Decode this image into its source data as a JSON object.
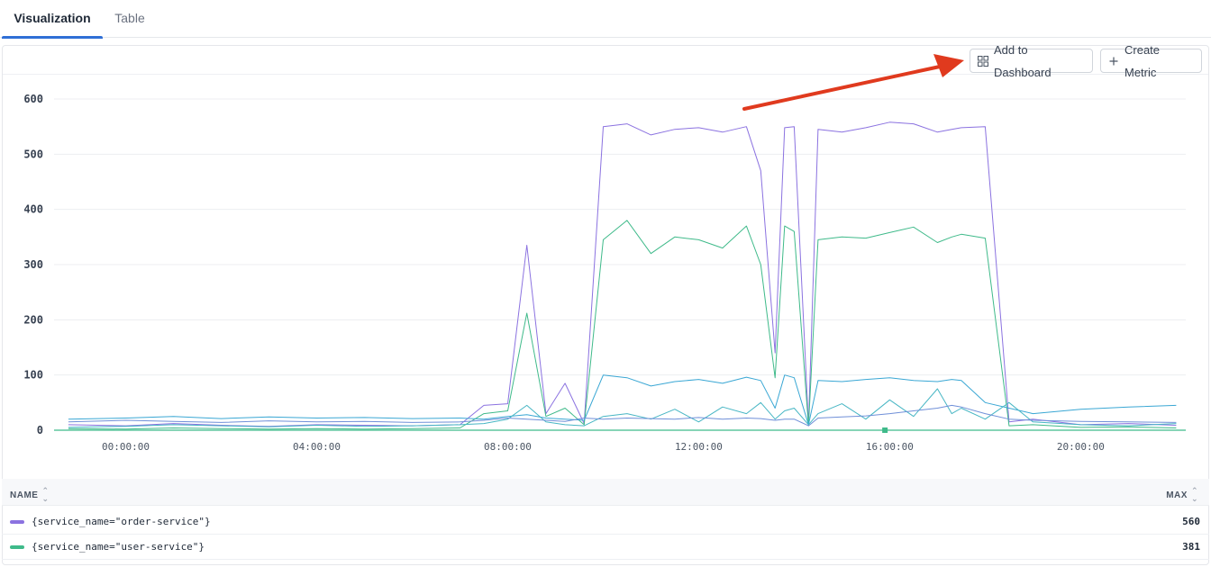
{
  "tabs": [
    {
      "label": "Visualization",
      "active": true
    },
    {
      "label": "Table",
      "active": false
    }
  ],
  "toolbar": {
    "add_to_dashboard_label": "Add to Dashboard",
    "create_metric_label": "Create Metric"
  },
  "chart_data": {
    "type": "line",
    "title": "",
    "xlabel": "",
    "ylabel": "",
    "ylim": [
      0,
      620
    ],
    "y_ticks": [
      0,
      100,
      200,
      300,
      400,
      500,
      600
    ],
    "x_tick_labels": [
      "00:00:00",
      "04:00:00",
      "08:00:00",
      "12:00:00",
      "16:00:00",
      "20:00:00"
    ],
    "x_range_hours": [
      -1.5,
      22.2
    ],
    "grid": true,
    "series": [
      {
        "name": "{service_name=\"order-service\"}",
        "color": "#8b72e0",
        "x_hours": [
          -1.2,
          0,
          1,
          2,
          3,
          4,
          5,
          6,
          7,
          7.5,
          8,
          8.4,
          8.8,
          9.2,
          9.6,
          10,
          10.5,
          11,
          11.5,
          12,
          12.5,
          13,
          13.3,
          13.6,
          13.8,
          14,
          14.3,
          14.5,
          15,
          15.5,
          16,
          16.5,
          17,
          17.3,
          17.5,
          18,
          18.5,
          19,
          20,
          21,
          22
        ],
        "values": [
          10,
          8,
          12,
          9,
          7,
          10,
          9,
          8,
          10,
          45,
          48,
          335,
          30,
          85,
          12,
          550,
          555,
          535,
          545,
          548,
          540,
          550,
          470,
          140,
          548,
          550,
          10,
          545,
          540,
          548,
          558,
          555,
          540,
          545,
          548,
          550,
          15,
          20,
          10,
          12,
          9
        ]
      },
      {
        "name": "{service_name=\"user-service\"}",
        "color": "#3fba8a",
        "x_hours": [
          -1.2,
          0,
          1,
          2,
          3,
          4,
          5,
          6,
          7,
          7.5,
          8,
          8.4,
          8.8,
          9.2,
          9.6,
          10,
          10.5,
          11,
          11.5,
          12,
          12.5,
          13,
          13.3,
          13.6,
          13.8,
          14,
          14.3,
          14.5,
          15,
          15.5,
          16,
          16.5,
          17,
          17.3,
          17.5,
          18,
          18.5,
          19,
          20,
          21,
          22
        ],
        "values": [
          3,
          2,
          4,
          3,
          2,
          3,
          2,
          3,
          4,
          30,
          35,
          212,
          25,
          40,
          10,
          345,
          380,
          320,
          350,
          345,
          330,
          370,
          300,
          95,
          370,
          360,
          8,
          345,
          350,
          348,
          358,
          368,
          340,
          350,
          355,
          348,
          8,
          10,
          5,
          6,
          4
        ]
      },
      {
        "name": "",
        "color": "#3aa7d4",
        "x_hours": [
          -1.2,
          0,
          1,
          2,
          3,
          4,
          5,
          6,
          7,
          7.5,
          8,
          8.4,
          8.8,
          9.2,
          9.6,
          10,
          10.5,
          11,
          11.5,
          12,
          12.5,
          13,
          13.3,
          13.6,
          13.8,
          14,
          14.3,
          14.5,
          15,
          15.5,
          16,
          16.5,
          17,
          17.3,
          17.5,
          18,
          18.5,
          19,
          20,
          21,
          22
        ],
        "values": [
          20,
          22,
          25,
          21,
          24,
          22,
          23,
          21,
          22,
          20,
          25,
          28,
          22,
          20,
          18,
          100,
          95,
          80,
          88,
          92,
          85,
          96,
          90,
          40,
          100,
          95,
          10,
          90,
          88,
          92,
          95,
          90,
          88,
          92,
          90,
          50,
          40,
          30,
          38,
          42,
          45
        ]
      },
      {
        "name": "",
        "color": "#47b6c4",
        "x_hours": [
          -1.2,
          0,
          1,
          2,
          3,
          4,
          5,
          6,
          7,
          7.5,
          8,
          8.4,
          8.8,
          9.2,
          9.6,
          10,
          10.5,
          11,
          11.5,
          12,
          12.5,
          13,
          13.3,
          13.6,
          13.8,
          14,
          14.3,
          14.5,
          15,
          15.5,
          16,
          16.5,
          17,
          17.3,
          17.5,
          18,
          18.5,
          19,
          20,
          21,
          22
        ],
        "values": [
          5,
          7,
          10,
          8,
          6,
          9,
          7,
          8,
          10,
          12,
          20,
          45,
          15,
          10,
          8,
          25,
          30,
          20,
          38,
          15,
          42,
          30,
          50,
          20,
          35,
          40,
          10,
          30,
          48,
          20,
          55,
          25,
          75,
          30,
          40,
          20,
          50,
          15,
          10,
          8,
          12
        ]
      },
      {
        "name": "",
        "color": "#6f8fd8",
        "x_hours": [
          -1.2,
          0,
          1,
          2,
          3,
          4,
          5,
          6,
          7,
          7.5,
          8,
          8.4,
          8.8,
          9.2,
          9.6,
          10,
          10.5,
          11,
          11.5,
          12,
          12.5,
          13,
          13.3,
          13.6,
          13.8,
          14,
          14.3,
          14.5,
          15,
          15.5,
          16,
          16.5,
          17,
          17.3,
          17.5,
          18,
          18.5,
          19,
          20,
          21,
          22
        ],
        "values": [
          15,
          18,
          16,
          14,
          17,
          15,
          16,
          14,
          15,
          18,
          22,
          20,
          18,
          16,
          22,
          20,
          22,
          21,
          20,
          23,
          20,
          22,
          21,
          18,
          20,
          20,
          8,
          22,
          24,
          26,
          30,
          35,
          40,
          45,
          42,
          30,
          20,
          18,
          16,
          15,
          14
        ]
      }
    ]
  },
  "legend": {
    "name_header": "NAME",
    "max_header": "MAX",
    "rows": [
      {
        "label": "{service_name=\"order-service\"}",
        "max": "560",
        "color": "#8b72e0"
      },
      {
        "label": "{service_name=\"user-service\"}",
        "max": "381",
        "color": "#3fba8a"
      }
    ]
  },
  "annotation": {
    "arrow_color": "#e03a1e"
  }
}
